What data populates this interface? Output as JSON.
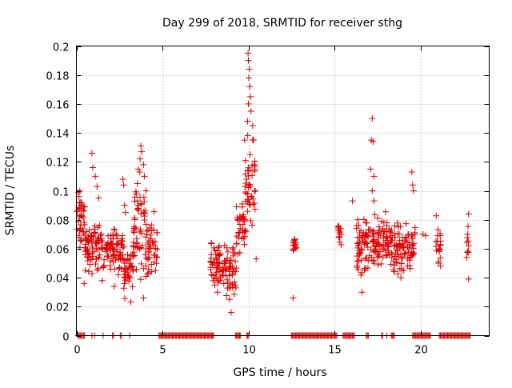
{
  "chart_data": {
    "type": "scatter",
    "title": "Day 299 of 2018, SRMTID for receiver sthg",
    "xlabel": "GPS time / hours",
    "ylabel": "SRMTID / TECUs",
    "xlim": [
      0,
      24
    ],
    "ylim": [
      0,
      0.2
    ],
    "x_ticks": [
      0,
      5,
      10,
      15,
      20
    ],
    "x_tick_labels": [
      "0",
      "5",
      "10",
      "15",
      "20"
    ],
    "y_ticks": [
      0,
      0.02,
      0.04,
      0.06,
      0.08,
      0.1,
      0.12,
      0.14,
      0.16,
      0.18,
      0.2
    ],
    "y_tick_labels": [
      "0",
      "0.02",
      "0.04",
      "0.06",
      "0.08",
      "0.1",
      "0.12",
      "0.14",
      "0.16",
      "0.18",
      "0.2"
    ],
    "grid": true,
    "marker": "+",
    "color": "#e00000",
    "clusters": [
      {
        "x": [
          0.0,
          0.5
        ],
        "y": [
          0.055,
          0.1
        ]
      },
      {
        "x": [
          0.5,
          1.6
        ],
        "y": [
          0.04,
          0.085
        ]
      },
      {
        "x": [
          1.6,
          2.7
        ],
        "y": [
          0.035,
          0.08
        ]
      },
      {
        "x": [
          2.7,
          3.3
        ],
        "y": [
          0.02,
          0.07
        ]
      },
      {
        "x": [
          3.3,
          4.0
        ],
        "y": [
          0.03,
          0.12
        ]
      },
      {
        "x": [
          4.0,
          4.7
        ],
        "y": [
          0.03,
          0.09
        ]
      },
      {
        "x": [
          7.8,
          8.7
        ],
        "y": [
          0.025,
          0.07
        ]
      },
      {
        "x": [
          8.7,
          9.3
        ],
        "y": [
          0.02,
          0.07
        ]
      },
      {
        "x": [
          9.3,
          9.8
        ],
        "y": [
          0.05,
          0.1
        ]
      },
      {
        "x": [
          9.8,
          10.4
        ],
        "y": [
          0.06,
          0.15
        ]
      },
      {
        "x": [
          12.6,
          12.8
        ],
        "y": [
          0.055,
          0.07
        ]
      },
      {
        "x": [
          15.2,
          15.4
        ],
        "y": [
          0.055,
          0.085
        ]
      },
      {
        "x": [
          16.2,
          16.8
        ],
        "y": [
          0.035,
          0.085
        ]
      },
      {
        "x": [
          16.8,
          17.4
        ],
        "y": [
          0.04,
          0.09
        ]
      },
      {
        "x": [
          17.4,
          18.4
        ],
        "y": [
          0.04,
          0.09
        ]
      },
      {
        "x": [
          18.4,
          19.5
        ],
        "y": [
          0.035,
          0.085
        ]
      },
      {
        "x": [
          19.5,
          19.7
        ],
        "y": [
          0.05,
          0.08
        ]
      },
      {
        "x": [
          20.9,
          21.2
        ],
        "y": [
          0.04,
          0.085
        ]
      },
      {
        "x": [
          22.7,
          22.8
        ],
        "y": [
          0.05,
          0.085
        ]
      }
    ],
    "points": [
      [
        12.6,
        0.026
      ],
      [
        12.7,
        0.066
      ],
      [
        12.65,
        0.06
      ],
      [
        9.98,
        0.195
      ],
      [
        10.0,
        0.19
      ],
      [
        10.05,
        0.184
      ],
      [
        10.02,
        0.178
      ],
      [
        10.08,
        0.172
      ],
      [
        10.12,
        0.165
      ],
      [
        10.0,
        0.16
      ],
      [
        10.15,
        0.155
      ],
      [
        9.95,
        0.148
      ],
      [
        10.25,
        0.145
      ],
      [
        9.78,
        0.135
      ],
      [
        10.3,
        0.135
      ],
      [
        10.1,
        0.125
      ],
      [
        10.35,
        0.118
      ],
      [
        9.9,
        0.108
      ],
      [
        10.4,
        0.1
      ],
      [
        10.45,
        0.053
      ],
      [
        17.2,
        0.15
      ],
      [
        17.15,
        0.135
      ],
      [
        17.25,
        0.134
      ],
      [
        17.1,
        0.115
      ],
      [
        17.3,
        0.11
      ],
      [
        17.2,
        0.1
      ],
      [
        17.3,
        0.093
      ],
      [
        16.05,
        0.093
      ],
      [
        3.75,
        0.131
      ],
      [
        3.8,
        0.127
      ],
      [
        3.7,
        0.122
      ],
      [
        3.9,
        0.118
      ],
      [
        3.6,
        0.115
      ],
      [
        3.95,
        0.11
      ],
      [
        3.55,
        0.105
      ],
      [
        4.05,
        0.1
      ],
      [
        3.5,
        0.098
      ],
      [
        0.9,
        0.126
      ],
      [
        0.95,
        0.116
      ],
      [
        1.1,
        0.11
      ],
      [
        1.2,
        0.103
      ],
      [
        1.3,
        0.095
      ],
      [
        2.7,
        0.108
      ],
      [
        2.75,
        0.104
      ],
      [
        2.8,
        0.09
      ],
      [
        2.85,
        0.085
      ],
      [
        19.5,
        0.113
      ],
      [
        19.55,
        0.104
      ],
      [
        19.6,
        0.1
      ],
      [
        0.1,
        0.099
      ],
      [
        0.15,
        0.096
      ],
      [
        0.2,
        0.1
      ],
      [
        0.25,
        0.092
      ],
      [
        20.3,
        0.069
      ],
      [
        20.15,
        0.07
      ],
      [
        22.8,
        0.084
      ],
      [
        22.75,
        0.07
      ],
      [
        22.8,
        0.062
      ],
      [
        22.7,
        0.054
      ],
      [
        22.8,
        0.039
      ],
      [
        0.45,
        0.036
      ],
      [
        1.5,
        0.038
      ],
      [
        2.2,
        0.034
      ],
      [
        8.2,
        0.03
      ],
      [
        8.9,
        0.025
      ],
      [
        9.0,
        0.016
      ],
      [
        3.9,
        0.026
      ],
      [
        16.6,
        0.03
      ]
    ],
    "zero_segments": [
      [
        0.1,
        0.3
      ],
      [
        0.35,
        0.5
      ],
      [
        0.9,
        0.95
      ],
      [
        1.05,
        1.1
      ],
      [
        1.55,
        1.6
      ],
      [
        2.1,
        2.2
      ],
      [
        2.55,
        2.65
      ],
      [
        3.1,
        3.15
      ],
      [
        4.8,
        8.0
      ],
      [
        9.25,
        9.6
      ],
      [
        9.9,
        10.05
      ],
      [
        12.5,
        15.2
      ],
      [
        15.5,
        16.2
      ],
      [
        16.85,
        17.0
      ],
      [
        17.75,
        17.85
      ],
      [
        18.05,
        18.1
      ],
      [
        18.3,
        18.5
      ],
      [
        19.55,
        20.6
      ],
      [
        21.1,
        22.9
      ]
    ]
  }
}
